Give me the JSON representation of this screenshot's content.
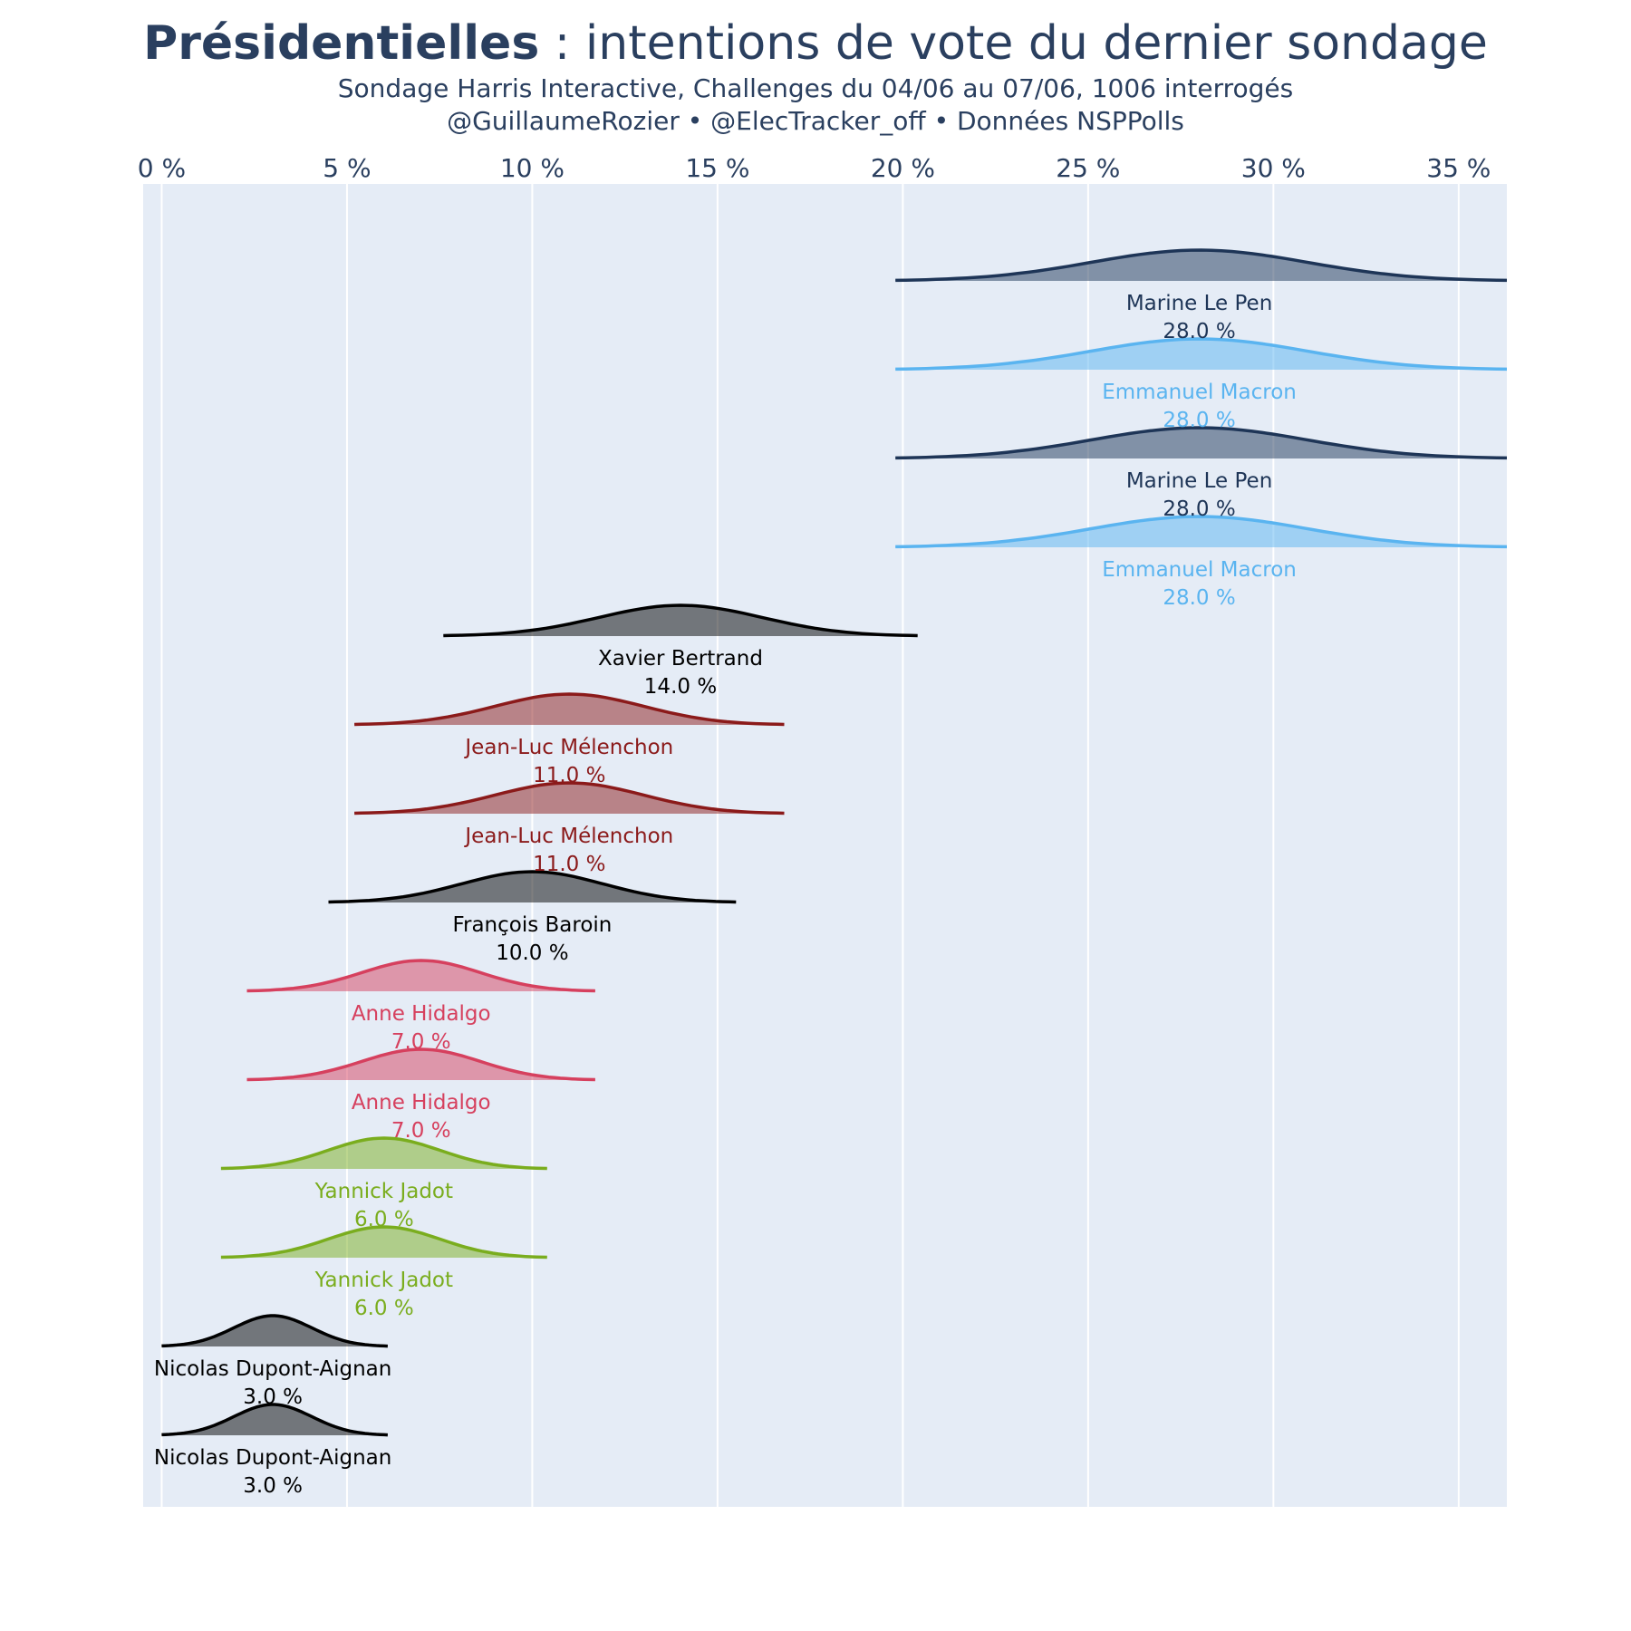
{
  "title_bold": "Présidentielles",
  "title_rest": " : intentions de vote du dernier sondage",
  "subtitle": "Sondage Harris Interactive, Challenges du 04/06 au 07/06, 1006 interrogés",
  "credits": "@GuillaumeRozier • @ElecTracker_off • Données NSPPolls",
  "colors": {
    "plot_bg": "#e5ecf6",
    "grid": "#ffffff",
    "text": "#2a3f5f"
  },
  "chart_data": {
    "type": "area",
    "x_axis": {
      "range": [
        -0.5,
        36.3
      ],
      "ticks": [
        0,
        5,
        10,
        15,
        20,
        25,
        30,
        35
      ],
      "tick_labels": [
        "0 %",
        "5 %",
        "10 %",
        "15 %",
        "20 %",
        "25 %",
        "30 %",
        "35 %"
      ],
      "position": "top",
      "grid": true
    },
    "series": [
      {
        "name": "Marine Le Pen",
        "value_label": "28.0 %",
        "value": 28.0,
        "color": "#1e3557",
        "x_min": 19.8,
        "x_max": 36.3,
        "sigma": 2.9
      },
      {
        "name": "Emmanuel Macron",
        "value_label": "28.0 %",
        "value": 28.0,
        "color": "#5ab4f0",
        "x_min": 19.8,
        "x_max": 36.3,
        "sigma": 2.9
      },
      {
        "name": "Marine Le Pen",
        "value_label": "28.0 %",
        "value": 28.0,
        "color": "#1e3557",
        "x_min": 19.8,
        "x_max": 36.3,
        "sigma": 2.9
      },
      {
        "name": "Emmanuel Macron",
        "value_label": "28.0 %",
        "value": 28.0,
        "color": "#5ab4f0",
        "x_min": 19.8,
        "x_max": 36.3,
        "sigma": 2.9
      },
      {
        "name": "Xavier Bertrand",
        "value_label": "14.0 %",
        "value": 14.0,
        "color": "#000000",
        "x_min": 7.6,
        "x_max": 20.4,
        "sigma": 2.2
      },
      {
        "name": "Jean-Luc Mélenchon",
        "value_label": "11.0 %",
        "value": 11.0,
        "color": "#8b1a1a",
        "x_min": 5.2,
        "x_max": 16.8,
        "sigma": 2.0
      },
      {
        "name": "Jean-Luc Mélenchon",
        "value_label": "11.0 %",
        "value": 11.0,
        "color": "#8b1a1a",
        "x_min": 5.2,
        "x_max": 16.8,
        "sigma": 2.0
      },
      {
        "name": "François Baroin",
        "value_label": "10.0 %",
        "value": 10.0,
        "color": "#000000",
        "x_min": 4.5,
        "x_max": 15.5,
        "sigma": 1.9
      },
      {
        "name": "Anne Hidalgo",
        "value_label": "7.0 %",
        "value": 7.0,
        "color": "#d6405e",
        "x_min": 2.3,
        "x_max": 11.7,
        "sigma": 1.6
      },
      {
        "name": "Anne Hidalgo",
        "value_label": "7.0 %",
        "value": 7.0,
        "color": "#d6405e",
        "x_min": 2.3,
        "x_max": 11.7,
        "sigma": 1.6
      },
      {
        "name": "Yannick Jadot",
        "value_label": "6.0 %",
        "value": 6.0,
        "color": "#7aad1e",
        "x_min": 1.6,
        "x_max": 10.4,
        "sigma": 1.5
      },
      {
        "name": "Yannick Jadot",
        "value_label": "6.0 %",
        "value": 6.0,
        "color": "#7aad1e",
        "x_min": 1.6,
        "x_max": 10.4,
        "sigma": 1.5
      },
      {
        "name": "Nicolas Dupont-Aignan",
        "value_label": "3.0 %",
        "value": 3.0,
        "color": "#000000",
        "x_min": 0.0,
        "x_max": 6.1,
        "sigma": 1.05
      },
      {
        "name": "Nicolas Dupont-Aignan",
        "value_label": "3.0 %",
        "value": 3.0,
        "color": "#000000",
        "x_min": 0.0,
        "x_max": 6.1,
        "sigma": 1.05
      }
    ]
  }
}
